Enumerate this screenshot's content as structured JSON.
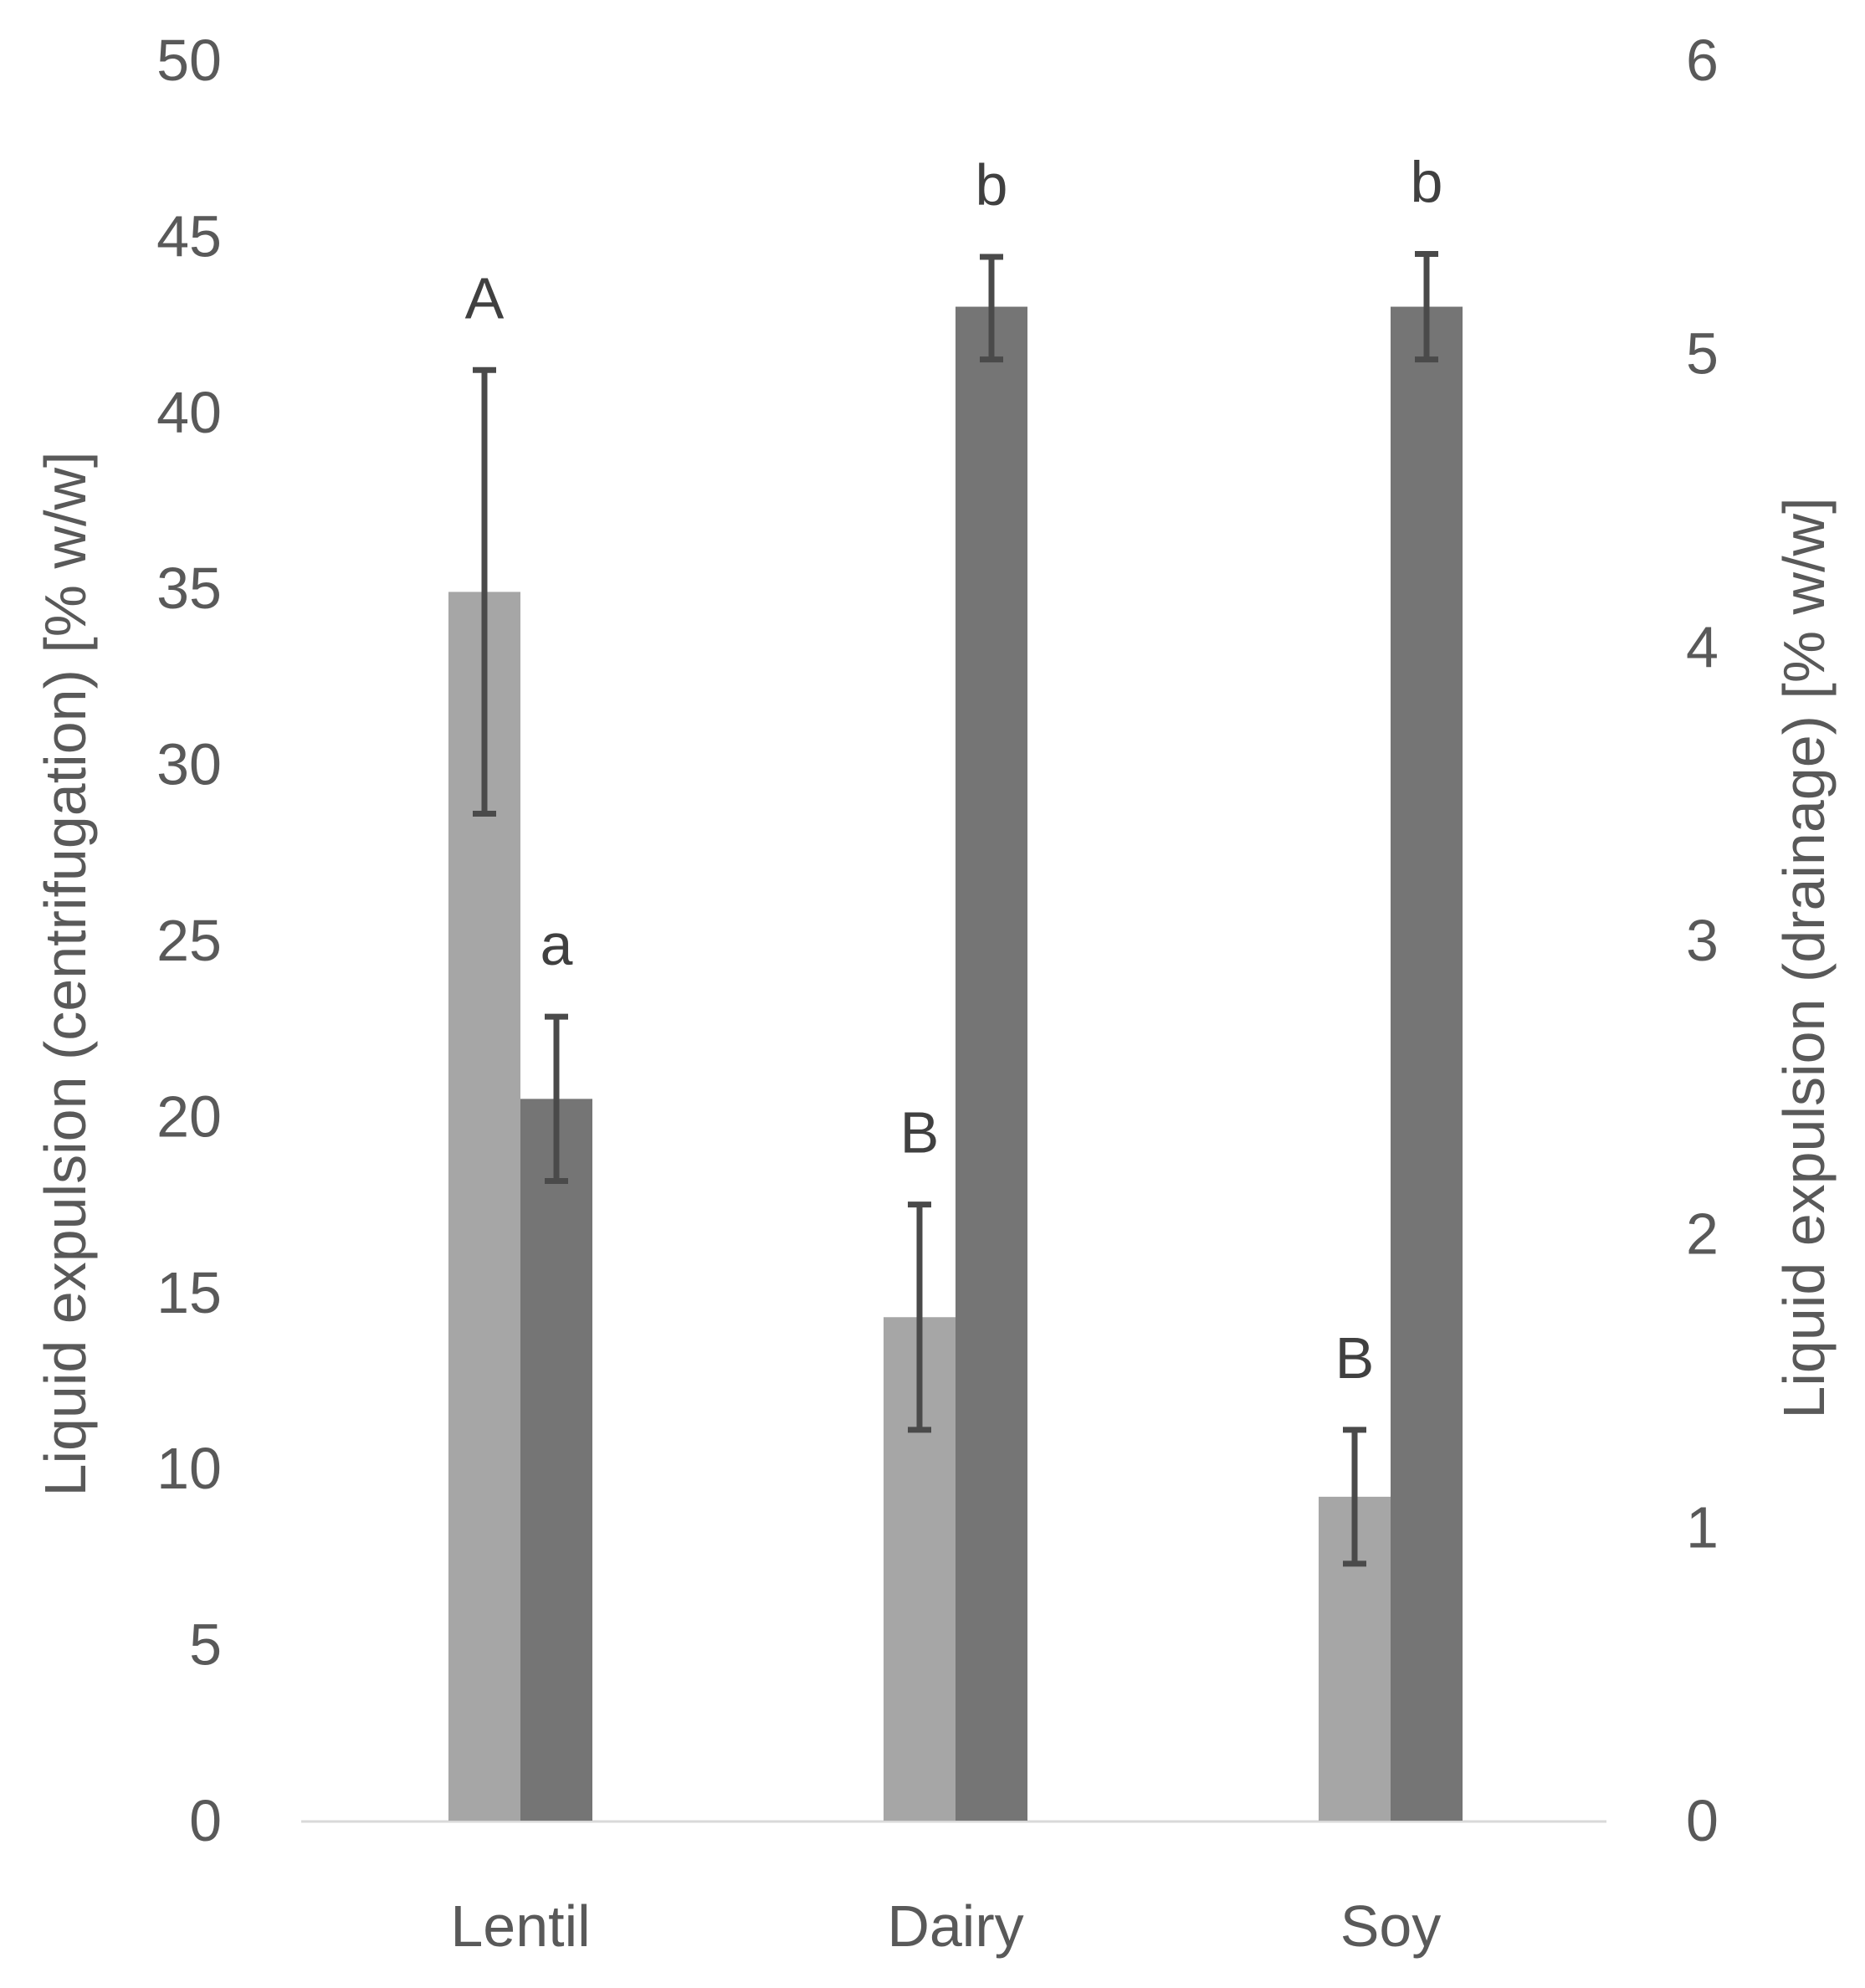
{
  "chart_data": {
    "type": "bar",
    "title": "",
    "categories": [
      "Lentil",
      "Dairy",
      "Soy"
    ],
    "xlabel": "",
    "ylabel_left": "Liquid expulsion (centrifugation) [% w/w]",
    "ylabel_right": "Liquid expulsion (drainage) [% w/w]",
    "ylim_left": [
      0,
      50
    ],
    "ylim_right": [
      0,
      6
    ],
    "yticks_left": [
      "0",
      "5",
      "10",
      "15",
      "20",
      "25",
      "30",
      "35",
      "40",
      "45",
      "50"
    ],
    "yticks_right": [
      "0",
      "1",
      "2",
      "3",
      "4",
      "5",
      "6"
    ],
    "grid": false,
    "series": [
      {
        "name": "centrifugation",
        "axis": "left",
        "color": "#a6a6a6",
        "values": [
          34.9,
          14.3,
          9.2
        ],
        "error_low": [
          28.6,
          11.1,
          7.3
        ],
        "error_high": [
          41.2,
          17.5,
          11.1
        ],
        "labels": [
          "A",
          "B",
          "B"
        ]
      },
      {
        "name": "drainage",
        "axis": "right",
        "color": "#757575",
        "values": [
          2.46,
          5.16,
          5.16
        ],
        "error_low": [
          2.18,
          4.98,
          4.98
        ],
        "error_high": [
          2.74,
          5.33,
          5.34
        ],
        "labels": [
          "a",
          "b",
          "b"
        ]
      }
    ],
    "error_bar_color": "#4a4a4a",
    "axis_line_color": "#d9d9d9"
  }
}
